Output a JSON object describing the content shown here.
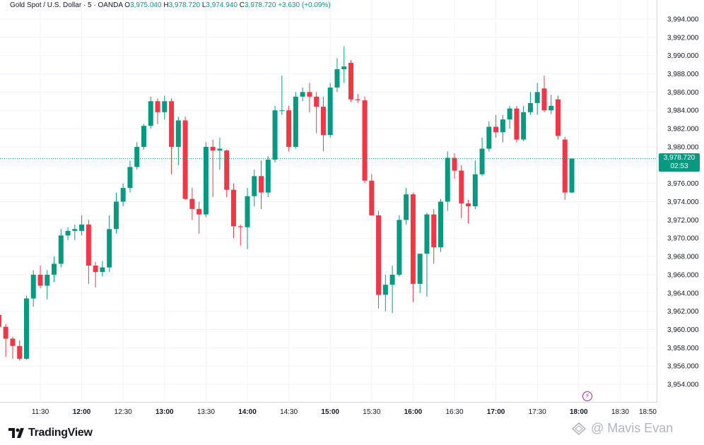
{
  "header": {
    "symbol": "Gold Spot / U.S. Dollar · 5 · OANDA",
    "open_label": "O",
    "open": "3,975.040",
    "high_label": "H",
    "high": "3,978.720",
    "low_label": "L",
    "low": "3,974.940",
    "close_label": "C",
    "close": "3,978.720",
    "change": "+3.630 (+0.09%)"
  },
  "price_tag": {
    "price": "3,978.720",
    "countdown": "02:53"
  },
  "brand": {
    "name": "TradingView"
  },
  "watermark": {
    "text": "@ Mavis Evan"
  },
  "colors": {
    "up": "#089981",
    "down": "#f23645",
    "accent": "#9c27b0"
  },
  "icons": {
    "logo": "tradingview-logo-icon",
    "bolt": "lightning-icon",
    "watermark": "diamond-logo-icon"
  },
  "chart_data": {
    "type": "candlestick",
    "ylim": [
      3953,
      3995
    ],
    "y_ticks": [
      3954,
      3956,
      3958,
      3960,
      3962,
      3964,
      3966,
      3968,
      3970,
      3972,
      3974,
      3976,
      3978,
      3980,
      3982,
      3984,
      3986,
      3988,
      3990,
      3992,
      3994
    ],
    "y_tick_labels": [
      "3,954.000",
      "3,956.000",
      "3,958.000",
      "3,960.000",
      "3,962.000",
      "3,964.000",
      "3,966.000",
      "3,968.000",
      "3,970.000",
      "3,972.000",
      "3,974.000",
      "3,976.000",
      "3,978.000",
      "3,980.000",
      "3,982.000",
      "3,984.000",
      "3,986.000",
      "3,988.000",
      "3,990.000",
      "3,992.000",
      "3,994.000"
    ],
    "x_ticks": [
      {
        "label": "11:30",
        "bold": false,
        "t": 690
      },
      {
        "label": "12:00",
        "bold": true,
        "t": 720
      },
      {
        "label": "12:30",
        "bold": false,
        "t": 750
      },
      {
        "label": "13:00",
        "bold": true,
        "t": 780
      },
      {
        "label": "13:30",
        "bold": false,
        "t": 810
      },
      {
        "label": "14:00",
        "bold": true,
        "t": 840
      },
      {
        "label": "14:30",
        "bold": false,
        "t": 870
      },
      {
        "label": "15:00",
        "bold": true,
        "t": 900
      },
      {
        "label": "15:30",
        "bold": false,
        "t": 930
      },
      {
        "label": "16:00",
        "bold": true,
        "t": 960
      },
      {
        "label": "16:30",
        "bold": false,
        "t": 990
      },
      {
        "label": "17:00",
        "bold": true,
        "t": 1020
      },
      {
        "label": "17:30",
        "bold": false,
        "t": 1050
      },
      {
        "label": "18:00",
        "bold": true,
        "t": 1080
      },
      {
        "label": "18:30",
        "bold": false,
        "t": 1110
      },
      {
        "label": "18:50",
        "bold": false,
        "t": 1130
      }
    ],
    "last_price": 3978.72,
    "start_time_min": 655,
    "interval_min": 5,
    "ohlc": [
      [
        3960.0,
        3962.0,
        3959.5,
        3961.8
      ],
      [
        3961.6,
        3962.0,
        3959.8,
        3960.3
      ],
      [
        3960.3,
        3960.6,
        3957.0,
        3959.0
      ],
      [
        3959.0,
        3959.2,
        3956.8,
        3958.2
      ],
      [
        3958.2,
        3958.8,
        3956.6,
        3956.8
      ],
      [
        3956.8,
        3963.7,
        3956.7,
        3963.4
      ],
      [
        3963.4,
        3966.5,
        3962.5,
        3966.0
      ],
      [
        3966.0,
        3967.0,
        3964.5,
        3964.8
      ],
      [
        3964.8,
        3966.5,
        3963.3,
        3966.0
      ],
      [
        3966.0,
        3968.0,
        3965.2,
        3967.2
      ],
      [
        3967.2,
        3971.0,
        3966.8,
        3970.3
      ],
      [
        3970.3,
        3971.2,
        3969.8,
        3970.8
      ],
      [
        3970.8,
        3971.5,
        3969.8,
        3971.0
      ],
      [
        3970.8,
        3972.5,
        3970.3,
        3971.5
      ],
      [
        3971.5,
        3972.0,
        3965.0,
        3967.0
      ],
      [
        3967.0,
        3967.4,
        3964.6,
        3966.3
      ],
      [
        3966.3,
        3967.5,
        3965.8,
        3966.8
      ],
      [
        3966.8,
        3972.5,
        3966.3,
        3971.0
      ],
      [
        3971.0,
        3975.0,
        3970.5,
        3974.0
      ],
      [
        3974.0,
        3976.0,
        3973.5,
        3975.5
      ],
      [
        3975.5,
        3978.5,
        3975.0,
        3977.8
      ],
      [
        3977.8,
        3980.5,
        3977.5,
        3980.0
      ],
      [
        3980.0,
        3982.5,
        3979.7,
        3982.3
      ],
      [
        3982.3,
        3985.5,
        3982.0,
        3985.0
      ],
      [
        3985.0,
        3985.3,
        3982.5,
        3983.8
      ],
      [
        3983.8,
        3985.6,
        3983.0,
        3985.0
      ],
      [
        3985.0,
        3985.3,
        3977.0,
        3980.0
      ],
      [
        3980.0,
        3983.3,
        3978.0,
        3982.9
      ],
      [
        3982.9,
        3983.3,
        3974.2,
        3974.3
      ],
      [
        3974.3,
        3975.5,
        3972.0,
        3973.2
      ],
      [
        3973.2,
        3974.0,
        3970.5,
        3972.6
      ],
      [
        3972.6,
        3980.5,
        3972.3,
        3980.0
      ],
      [
        3980.0,
        3980.8,
        3974.5,
        3979.6
      ],
      [
        3979.6,
        3981.0,
        3977.5,
        3979.8
      ],
      [
        3979.6,
        3979.7,
        3974.5,
        3975.3
      ],
      [
        3975.3,
        3976.0,
        3970.0,
        3971.3
      ],
      [
        3971.3,
        3971.5,
        3969.2,
        3971.2
      ],
      [
        3971.2,
        3975.5,
        3968.8,
        3974.6
      ],
      [
        3974.6,
        3977.5,
        3973.5,
        3976.8
      ],
      [
        3976.8,
        3978.5,
        3973.2,
        3975.0
      ],
      [
        3975.0,
        3979.0,
        3974.5,
        3978.6
      ],
      [
        3978.6,
        3984.5,
        3978.3,
        3984.0
      ],
      [
        3984.0,
        3987.8,
        3983.5,
        3984.0
      ],
      [
        3984.0,
        3984.5,
        3979.5,
        3980.0
      ],
      [
        3980.0,
        3986.0,
        3979.8,
        3985.5
      ],
      [
        3985.5,
        3986.5,
        3985.0,
        3986.0
      ],
      [
        3986.0,
        3987.0,
        3983.8,
        3985.5
      ],
      [
        3985.5,
        3986.0,
        3981.5,
        3984.4
      ],
      [
        3984.4,
        3985.5,
        3979.5,
        3981.3
      ],
      [
        3981.3,
        3987.0,
        3981.0,
        3986.5
      ],
      [
        3986.5,
        3989.7,
        3986.0,
        3988.5
      ],
      [
        3988.5,
        3991.0,
        3987.0,
        3988.8
      ],
      [
        3989.2,
        3989.5,
        3984.9,
        3985.2
      ],
      [
        3985.2,
        3985.8,
        3984.8,
        3985.1
      ],
      [
        3985.1,
        3985.5,
        3976.0,
        3976.3
      ],
      [
        3976.3,
        3977.0,
        3972.5,
        3972.5
      ],
      [
        3972.5,
        3973.0,
        3962.3,
        3963.8
      ],
      [
        3963.8,
        3966.0,
        3962.0,
        3964.9
      ],
      [
        3964.9,
        3967.0,
        3961.8,
        3966.0
      ],
      [
        3966.0,
        3972.5,
        3965.8,
        3972.0
      ],
      [
        3972.0,
        3975.5,
        3971.5,
        3974.8
      ],
      [
        3974.8,
        3975.0,
        3963.0,
        3965.0
      ],
      [
        3965.0,
        3968.0,
        3964.0,
        3968.3
      ],
      [
        3968.3,
        3972.8,
        3963.6,
        3972.6
      ],
      [
        3972.6,
        3973.2,
        3967.2,
        3969.0
      ],
      [
        3969.0,
        3974.3,
        3968.5,
        3974.0
      ],
      [
        3974.0,
        3979.5,
        3973.0,
        3978.8
      ],
      [
        3978.8,
        3979.3,
        3976.5,
        3977.4
      ],
      [
        3977.4,
        3978.0,
        3972.2,
        3973.8
      ],
      [
        3973.8,
        3974.2,
        3971.6,
        3973.5
      ],
      [
        3973.5,
        3978.5,
        3973.2,
        3977.0
      ],
      [
        3977.0,
        3981.0,
        3976.8,
        3979.8
      ],
      [
        3979.8,
        3982.8,
        3979.5,
        3982.2
      ],
      [
        3982.2,
        3983.5,
        3981.0,
        3981.6
      ],
      [
        3981.6,
        3983.5,
        3980.5,
        3983.0
      ],
      [
        3983.0,
        3984.5,
        3982.0,
        3984.2
      ],
      [
        3984.2,
        3984.5,
        3980.5,
        3980.8
      ],
      [
        3980.8,
        3984.5,
        3980.6,
        3983.8
      ],
      [
        3983.8,
        3986.0,
        3983.5,
        3984.8
      ],
      [
        3984.8,
        3987.0,
        3983.5,
        3986.0
      ],
      [
        3986.4,
        3987.8,
        3983.8,
        3984.0
      ],
      [
        3984.0,
        3985.7,
        3983.6,
        3984.5
      ],
      [
        3985.2,
        3985.6,
        3980.8,
        3981.2
      ],
      [
        3980.8,
        3981.1,
        3974.2,
        3975.0
      ],
      [
        3975.0,
        3978.72,
        3974.94,
        3978.72
      ]
    ]
  }
}
